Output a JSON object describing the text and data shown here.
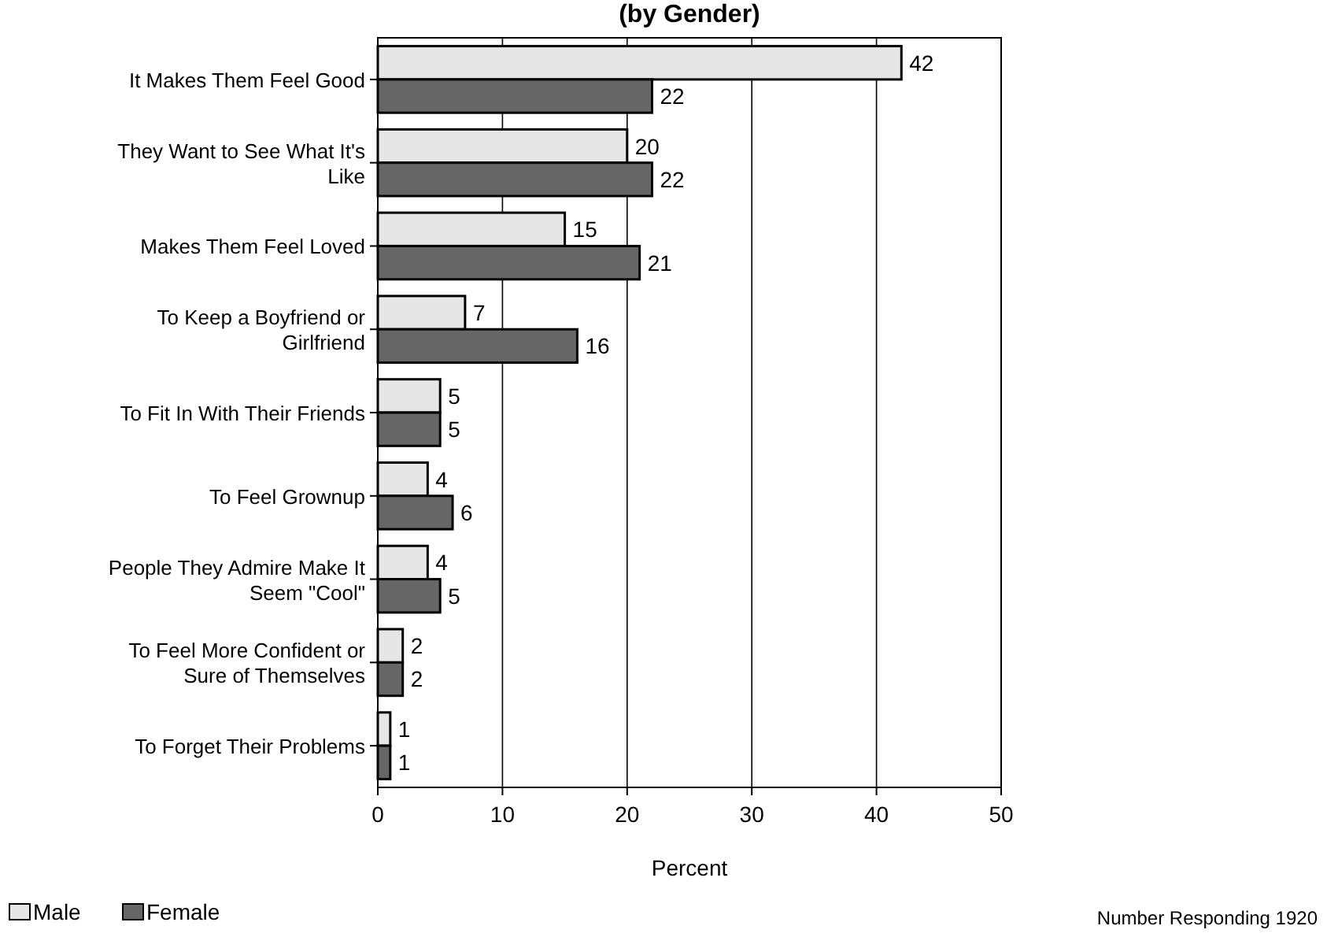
{
  "chart_data": {
    "type": "bar",
    "orientation": "horizontal",
    "title": "(by Gender)",
    "xlabel": "Percent",
    "categories": [
      "It Makes Them Feel Good",
      "They Want to See What It's Like",
      "Makes Them Feel Loved",
      "To Keep a Boyfriend or Girlfriend",
      "To Fit In With Their Friends",
      "To Feel Grownup",
      "People They Admire Make It Seem \"Cool\"",
      "To Feel More Confident or Sure of Themselves",
      "To Forget Their Problems"
    ],
    "series": [
      {
        "name": "Male",
        "color": "#e6e6e6",
        "values": [
          42,
          20,
          15,
          7,
          5,
          4,
          4,
          2,
          1
        ]
      },
      {
        "name": "Female",
        "color": "#666666",
        "values": [
          22,
          22,
          21,
          16,
          5,
          6,
          5,
          2,
          1
        ]
      }
    ],
    "xlim": [
      0,
      50
    ],
    "xticks": [
      0,
      10,
      20,
      30,
      40,
      50
    ],
    "grid": "x",
    "legend": "bottom left",
    "data_labels": true,
    "annotations": [
      "Number Responding 1920"
    ]
  }
}
